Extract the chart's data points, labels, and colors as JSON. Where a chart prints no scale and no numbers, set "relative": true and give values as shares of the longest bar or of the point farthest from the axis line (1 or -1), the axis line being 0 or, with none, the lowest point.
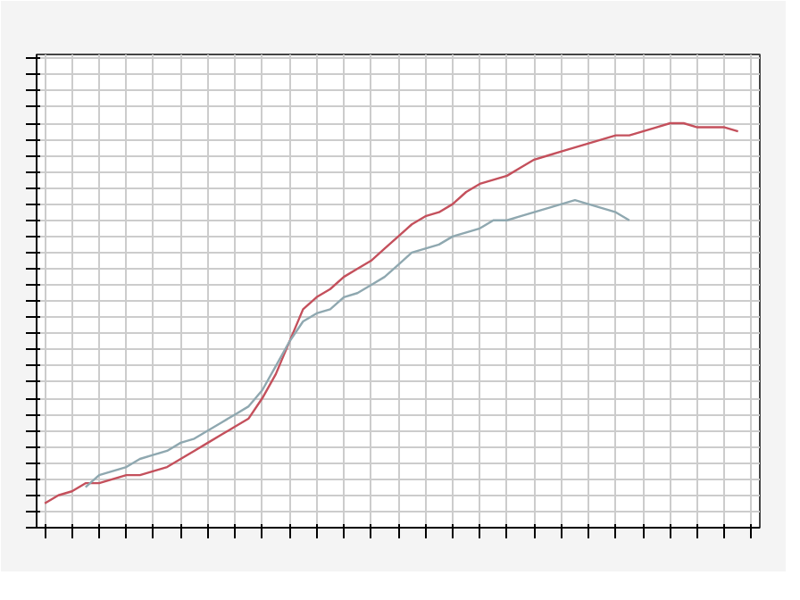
{
  "chart_data": {
    "type": "line",
    "relative": true,
    "grid": true,
    "tick_labels": false,
    "line_style": "solid",
    "categories": [
      null,
      null,
      null,
      null,
      null,
      null,
      null,
      null,
      null,
      null,
      null,
      null,
      null,
      null,
      null,
      null,
      null,
      null,
      null,
      null,
      null,
      null,
      null,
      null,
      null,
      null,
      null,
      null,
      null,
      null,
      null,
      null,
      null,
      null,
      null,
      null,
      null,
      null,
      null,
      null,
      null,
      null,
      null,
      null,
      null,
      null,
      null,
      null,
      null,
      null,
      null,
      null,
      null
    ],
    "series": [
      {
        "color": "#c4505c",
        "values": [
          0.06,
          0.08,
          0.09,
          0.11,
          0.11,
          0.12,
          0.13,
          0.13,
          0.14,
          0.15,
          0.17,
          0.19,
          0.21,
          0.23,
          0.25,
          0.27,
          0.32,
          0.38,
          0.46,
          0.54,
          0.57,
          0.59,
          0.62,
          0.64,
          0.66,
          0.69,
          0.72,
          0.75,
          0.77,
          0.78,
          0.8,
          0.83,
          0.85,
          0.86,
          0.87,
          0.89,
          0.91,
          0.92,
          0.93,
          0.94,
          0.95,
          0.96,
          0.97,
          0.97,
          0.98,
          0.99,
          1,
          1,
          0.99,
          0.99,
          0.99,
          0.98,
          null
        ]
      },
      {
        "color": "#8fa8b0",
        "values": [
          null,
          null,
          null,
          0.1,
          0.13,
          0.14,
          0.15,
          0.17,
          0.18,
          0.19,
          0.21,
          0.22,
          0.24,
          0.26,
          0.28,
          0.3,
          0.34,
          0.4,
          0.46,
          0.51,
          0.53,
          0.54,
          0.57,
          0.58,
          0.6,
          0.62,
          0.65,
          0.68,
          0.69,
          0.7,
          0.72,
          0.73,
          0.74,
          0.76,
          0.76,
          0.77,
          0.78,
          0.79,
          0.8,
          0.81,
          0.8,
          0.79,
          0.78,
          0.76,
          null,
          null,
          null,
          null,
          null,
          null,
          null,
          null,
          null
        ]
      }
    ]
  }
}
